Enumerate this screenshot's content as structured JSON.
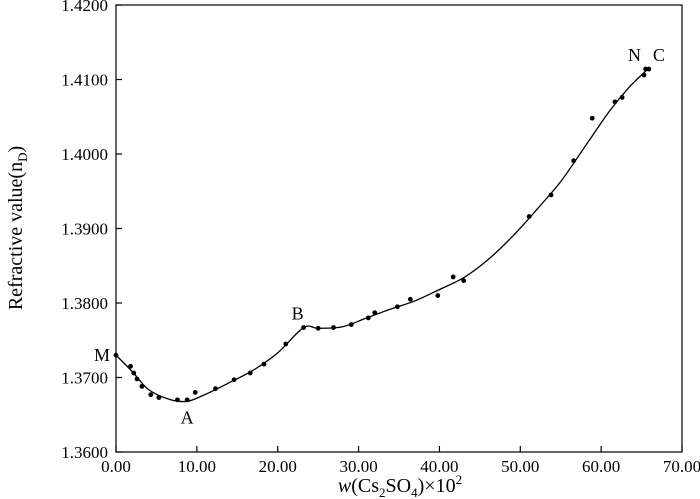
{
  "chart_data": {
    "type": "scatter",
    "ylabel_main": "Refractive value(n",
    "ylabel_sub": "D",
    "ylabel_close": ")",
    "xlabel_italic": "w",
    "xlabel_open": "(Cs",
    "xlabel_sub1": "2",
    "xlabel_mid": "SO",
    "xlabel_sub2": "4",
    "xlabel_close": ")×10",
    "xlabel_sup": "2",
    "xlim": [
      0,
      70
    ],
    "ylim": [
      1.36,
      1.42
    ],
    "x_ticks": [
      {
        "value": 0,
        "label": "0.00"
      },
      {
        "value": 10,
        "label": "10.00"
      },
      {
        "value": 20,
        "label": "20.00"
      },
      {
        "value": 30,
        "label": "30.00"
      },
      {
        "value": 40,
        "label": "40.00"
      },
      {
        "value": 50,
        "label": "50.00"
      },
      {
        "value": 60,
        "label": "60.00"
      },
      {
        "value": 70,
        "label": "70.00"
      }
    ],
    "y_ticks": [
      {
        "value": 1.36,
        "label": "1.3600"
      },
      {
        "value": 1.37,
        "label": "1.3700"
      },
      {
        "value": 1.38,
        "label": "1.3800"
      },
      {
        "value": 1.39,
        "label": "1.3900"
      },
      {
        "value": 1.4,
        "label": "1.4000"
      },
      {
        "value": 1.41,
        "label": "1.4100"
      },
      {
        "value": 1.42,
        "label": "1.4200"
      }
    ],
    "points": [
      {
        "x": 0.0,
        "y": 1.373
      },
      {
        "x": 1.8,
        "y": 1.3715
      },
      {
        "x": 2.2,
        "y": 1.3706
      },
      {
        "x": 2.6,
        "y": 1.3698
      },
      {
        "x": 3.2,
        "y": 1.3688
      },
      {
        "x": 4.3,
        "y": 1.3677
      },
      {
        "x": 5.3,
        "y": 1.3673
      },
      {
        "x": 7.6,
        "y": 1.367
      },
      {
        "x": 8.8,
        "y": 1.367
      },
      {
        "x": 9.8,
        "y": 1.368
      },
      {
        "x": 12.3,
        "y": 1.3685
      },
      {
        "x": 14.6,
        "y": 1.3697
      },
      {
        "x": 16.6,
        "y": 1.3706
      },
      {
        "x": 18.3,
        "y": 1.3718
      },
      {
        "x": 21.0,
        "y": 1.3745
      },
      {
        "x": 23.2,
        "y": 1.3767
      },
      {
        "x": 25.0,
        "y": 1.3766
      },
      {
        "x": 26.9,
        "y": 1.3767
      },
      {
        "x": 29.1,
        "y": 1.3771
      },
      {
        "x": 31.2,
        "y": 1.378
      },
      {
        "x": 32.0,
        "y": 1.3787
      },
      {
        "x": 34.8,
        "y": 1.3795
      },
      {
        "x": 36.4,
        "y": 1.3805
      },
      {
        "x": 39.8,
        "y": 1.381
      },
      {
        "x": 41.7,
        "y": 1.3835
      },
      {
        "x": 43.0,
        "y": 1.383
      },
      {
        "x": 51.1,
        "y": 1.3916
      },
      {
        "x": 53.8,
        "y": 1.3945
      },
      {
        "x": 56.6,
        "y": 1.3991
      },
      {
        "x": 58.9,
        "y": 1.4048
      },
      {
        "x": 61.7,
        "y": 1.407
      },
      {
        "x": 62.6,
        "y": 1.4076
      },
      {
        "x": 65.3,
        "y": 1.4106
      },
      {
        "x": 65.5,
        "y": 1.4114
      },
      {
        "x": 65.9,
        "y": 1.4114
      }
    ],
    "curve": [
      {
        "x": 0.0,
        "y": 1.373
      },
      {
        "x": 2.0,
        "y": 1.3708
      },
      {
        "x": 4.0,
        "y": 1.3684
      },
      {
        "x": 6.5,
        "y": 1.3671
      },
      {
        "x": 8.8,
        "y": 1.3668
      },
      {
        "x": 11.0,
        "y": 1.3677
      },
      {
        "x": 14.0,
        "y": 1.3693
      },
      {
        "x": 17.0,
        "y": 1.371
      },
      {
        "x": 20.0,
        "y": 1.3733
      },
      {
        "x": 23.2,
        "y": 1.3767
      },
      {
        "x": 25.0,
        "y": 1.3766
      },
      {
        "x": 28.0,
        "y": 1.3768
      },
      {
        "x": 31.0,
        "y": 1.378
      },
      {
        "x": 34.0,
        "y": 1.3792
      },
      {
        "x": 37.0,
        "y": 1.3803
      },
      {
        "x": 40.0,
        "y": 1.3818
      },
      {
        "x": 43.0,
        "y": 1.3834
      },
      {
        "x": 46.0,
        "y": 1.3858
      },
      {
        "x": 49.0,
        "y": 1.3889
      },
      {
        "x": 52.0,
        "y": 1.3925
      },
      {
        "x": 55.0,
        "y": 1.3963
      },
      {
        "x": 58.0,
        "y": 1.401
      },
      {
        "x": 61.0,
        "y": 1.4057
      },
      {
        "x": 63.5,
        "y": 1.409
      },
      {
        "x": 65.9,
        "y": 1.4115
      }
    ],
    "annotations": [
      {
        "label": "M",
        "x": 0.0,
        "y": 1.373
      },
      {
        "label": "A",
        "x": 8.8,
        "y": 1.3668
      },
      {
        "label": "B",
        "x": 23.2,
        "y": 1.3767
      },
      {
        "label": "N",
        "x": 65.3,
        "y": 1.4114
      },
      {
        "label": "C",
        "x": 65.9,
        "y": 1.4114
      }
    ],
    "grid": false,
    "legend": "none"
  }
}
